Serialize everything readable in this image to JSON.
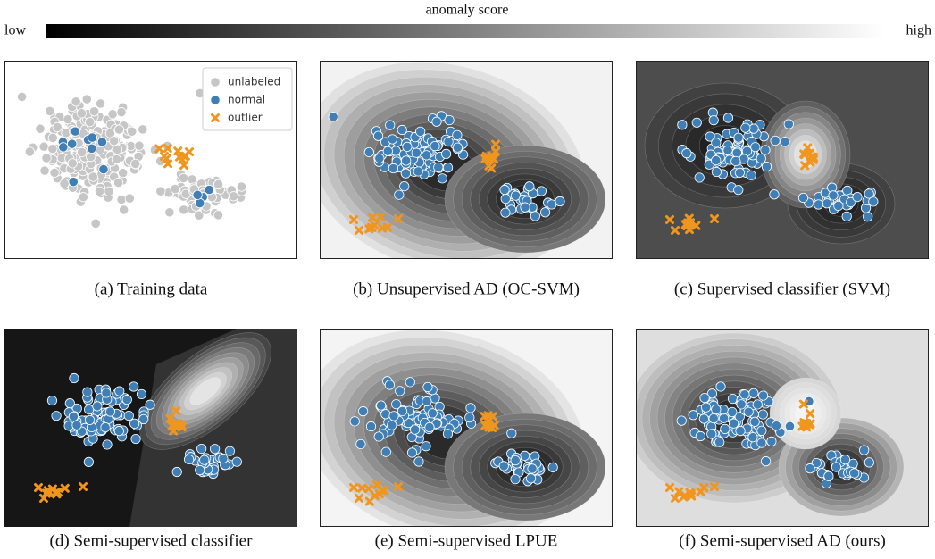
{
  "colorbar": {
    "title": "anomaly score",
    "low": "low",
    "high": "high"
  },
  "legend": {
    "labels": [
      "unlabeled",
      "normal",
      "outlier"
    ]
  },
  "panels": [
    {
      "caption": "(a)  Training data"
    },
    {
      "caption": "(b)  Unsupervised AD (OC-SVM)"
    },
    {
      "caption": "(c)  Supervised classifier (SVM)"
    },
    {
      "caption": "(d)  Semi-supervised classifier"
    },
    {
      "caption": "(e)  Semi-supervised LPUE"
    },
    {
      "caption": "(f)  Semi-supervised AD (ours)"
    }
  ]
}
